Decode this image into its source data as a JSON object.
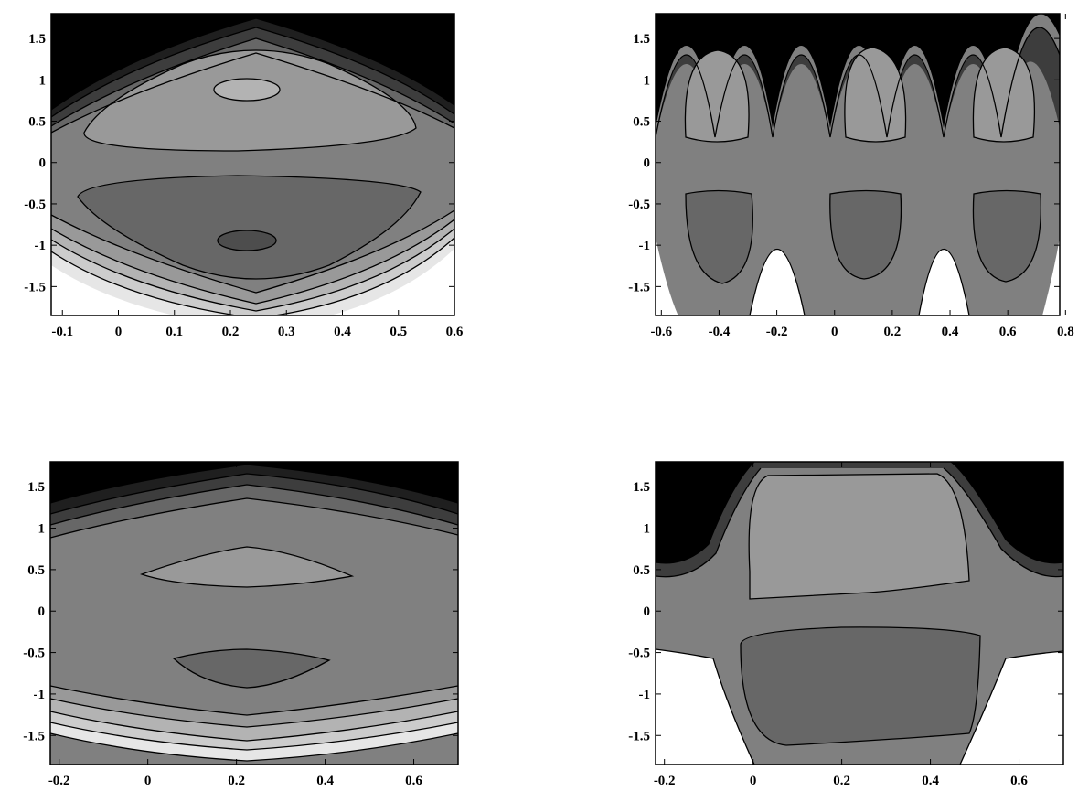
{
  "chart_data": [
    {
      "type": "contour",
      "panel": "top-left",
      "xlim": [
        -0.12,
        0.6
      ],
      "ylim": [
        -1.85,
        1.8
      ],
      "xticks": [
        -0.1,
        0,
        0.1,
        0.2,
        0.3,
        0.4,
        0.5,
        0.6
      ],
      "xtick_labels": [
        "-0.1",
        "0",
        "0.1",
        "0.2",
        "0.3",
        "0.4",
        "0.5",
        "0.6"
      ],
      "yticks": [
        -1.5,
        -1,
        -0.5,
        0,
        0.5,
        1,
        1.5
      ],
      "ytick_labels": [
        "-1.5",
        "-1",
        "-0.5",
        "0",
        "0.5",
        "1",
        "1.5"
      ],
      "shading": "grayscale, dark at top, light at bottom",
      "grid": false,
      "legend": "none"
    },
    {
      "type": "contour",
      "panel": "top-right",
      "xlim": [
        -0.62,
        0.78
      ],
      "ylim": [
        -1.85,
        1.8
      ],
      "xticks": [
        -0.6,
        -0.4,
        -0.2,
        0,
        0.2,
        0.4,
        0.6,
        0.8
      ],
      "xtick_labels": [
        "-0.6",
        "-0.4",
        "-0.2",
        "0",
        "0.2",
        "0.4",
        "0.6",
        "0.8"
      ],
      "yticks": [
        -1.5,
        -1,
        -0.5,
        0,
        0.5,
        1,
        1.5
      ],
      "ytick_labels": [
        "-1.5",
        "-1",
        "-0.5",
        "0",
        "0.5",
        "1",
        "1.5"
      ],
      "shading": "grayscale, dark at top, light at bottom",
      "grid": false,
      "legend": "none"
    },
    {
      "type": "contour",
      "panel": "bottom-left",
      "xlim": [
        -0.22,
        0.7
      ],
      "ylim": [
        -1.85,
        1.8
      ],
      "xticks": [
        -0.2,
        0,
        0.2,
        0.4,
        0.6
      ],
      "xtick_labels": [
        "-0.2",
        "0",
        "0.2",
        "0.4",
        "0.6"
      ],
      "yticks": [
        -1.5,
        -1,
        -0.5,
        0,
        0.5,
        1,
        1.5
      ],
      "ytick_labels": [
        "-1.5",
        "-1",
        "-0.5",
        "0",
        "0.5",
        "1",
        "1.5"
      ],
      "shading": "grayscale, dark at top, light at bottom",
      "grid": false,
      "legend": "none"
    },
    {
      "type": "contour",
      "panel": "bottom-right",
      "xlim": [
        -0.22,
        0.7
      ],
      "ylim": [
        -1.85,
        1.8
      ],
      "xticks": [
        -0.2,
        0,
        0.2,
        0.4,
        0.6
      ],
      "xtick_labels": [
        "-0.2",
        "0",
        "0.2",
        "0.4",
        "0.6"
      ],
      "yticks": [
        -1.5,
        -1,
        -0.5,
        0,
        0.5,
        1,
        1.5
      ],
      "ytick_labels": [
        "-1.5",
        "-1",
        "-0.5",
        "0",
        "0.5",
        "1",
        "1.5"
      ],
      "shading": "grayscale, dark at top, light at bottom",
      "grid": false,
      "legend": "none"
    }
  ],
  "colors": {
    "level_black": "#000000",
    "level_1": "#1f1f1f",
    "level_2": "#3d3d3d",
    "level_dark_gray": "#676767",
    "level_mid_gray": "#808080",
    "level_light_gray": "#999999",
    "level_4": "#b3b3b3",
    "level_5": "#cccccc",
    "level_6": "#e6e6e6",
    "background": "#ffffff"
  }
}
